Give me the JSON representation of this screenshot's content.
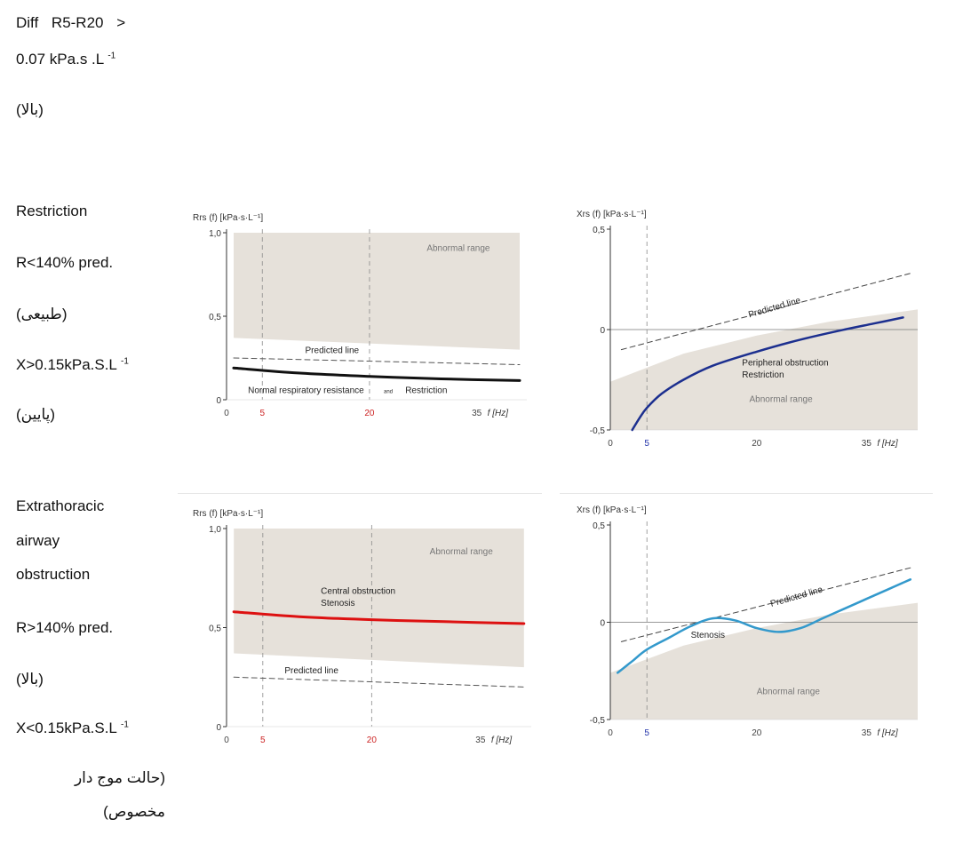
{
  "header": {
    "line1": "Diff R5-R20 >",
    "line2_main": "0.07 kPa.s .L",
    "line2_sup": "-1",
    "note": "(بالا)"
  },
  "rows": [
    {
      "labels": {
        "title": "Restriction",
        "r_rule": "R<140% pred.",
        "r_note": "(طبیعی)",
        "x_rule": "X>0.15kPa.S.L",
        "x_sup": "-1",
        "x_note": "(پایین)"
      }
    },
    {
      "labels": {
        "title_1": "Extrathoracic",
        "title_2": "airway",
        "title_3": "obstruction",
        "r_rule": "R>140% pred.",
        "r_note": "(بالا)",
        "x_rule": "X<0.15kPa.S.L",
        "x_sup": "-1",
        "x_note_1": "(حالت موج دار",
        "x_note_2": "مخصوص)"
      }
    }
  ],
  "chart_data": [
    {
      "id": "restriction-rrs",
      "type": "line",
      "ylabel": "Rrs (f) [kPa·s·L⁻¹]",
      "xlabel": "f [Hz]",
      "xlim": [
        0,
        42
      ],
      "ylim": [
        0,
        1.0
      ],
      "xticks": [
        {
          "v": 0,
          "t": "0",
          "c": "#444444"
        },
        {
          "v": 5,
          "t": "5",
          "c": "#cc2222"
        },
        {
          "v": 20,
          "t": "20",
          "c": "#cc2222"
        },
        {
          "v": 35,
          "t": "35",
          "c": "#444444"
        }
      ],
      "yticks": [
        {
          "v": 0,
          "t": "0"
        },
        {
          "v": 0.5,
          "t": "0,5"
        },
        {
          "v": 1.0,
          "t": "1,0"
        }
      ],
      "vlines": [
        5,
        20
      ],
      "region": {
        "label": "Abnormal range",
        "upper": [
          [
            1,
            1.0
          ],
          [
            41,
            1.0
          ]
        ],
        "lower": [
          [
            1,
            0.37
          ],
          [
            41,
            0.3
          ]
        ]
      },
      "series": [
        {
          "name": "Predicted line",
          "style": "dashed",
          "color": "#555555",
          "width": 1,
          "x": [
            1,
            41
          ],
          "y": [
            0.25,
            0.21
          ]
        },
        {
          "style": "solid",
          "color": "#111111",
          "width": 3,
          "x": [
            1,
            10,
            20,
            30,
            41
          ],
          "y": [
            0.19,
            0.16,
            0.14,
            0.125,
            0.115
          ]
        }
      ],
      "annotations": [
        {
          "text": "Abnormal range",
          "x": 28,
          "y": 0.89,
          "size": 10,
          "color": "#777777"
        },
        {
          "text": "Predicted line",
          "x": 11,
          "y": 0.28,
          "size": 10,
          "color": "#222222"
        },
        {
          "text": "Normal respiratory resistance",
          "x": 3,
          "y": 0.04,
          "size": 10,
          "color": "#222222"
        },
        {
          "text": "and",
          "x": 22,
          "y": 0.04,
          "size": 6,
          "color": "#222222"
        },
        {
          "text": "Restriction",
          "x": 25,
          "y": 0.04,
          "size": 10,
          "color": "#222222"
        }
      ]
    },
    {
      "id": "restriction-xrs",
      "type": "line",
      "ylabel": "Xrs (f) [kPa·s·L⁻¹]",
      "xlabel": "f [Hz]",
      "xlim": [
        0,
        42
      ],
      "ylim": [
        -0.5,
        0.5
      ],
      "xticks": [
        {
          "v": 0,
          "t": "0",
          "c": "#444444"
        },
        {
          "v": 5,
          "t": "5",
          "c": "#2233aa"
        },
        {
          "v": 20,
          "t": "20",
          "c": "#444444"
        },
        {
          "v": 35,
          "t": "35",
          "c": "#444444"
        }
      ],
      "yticks": [
        {
          "v": -0.5,
          "t": "-0,5"
        },
        {
          "v": 0,
          "t": "0"
        },
        {
          "v": 0.5,
          "t": "0,5"
        }
      ],
      "vlines": [
        5
      ],
      "hline": 0,
      "region": {
        "label": "Abnormal range",
        "upper": [
          [
            0,
            -0.26
          ],
          [
            10,
            -0.12
          ],
          [
            20,
            -0.03
          ],
          [
            30,
            0.04
          ],
          [
            42,
            0.1
          ]
        ],
        "lower": [
          [
            0,
            -0.5
          ],
          [
            42,
            -0.5
          ]
        ]
      },
      "series": [
        {
          "name": "Predicted line",
          "style": "dashed",
          "color": "#444444",
          "width": 1,
          "x": [
            1.5,
            41
          ],
          "y": [
            -0.1,
            0.28
          ]
        },
        {
          "style": "solid",
          "color": "#1c2f8f",
          "width": 2.5,
          "x": [
            3,
            4,
            5,
            7,
            10,
            14,
            20,
            26,
            32,
            36,
            40
          ],
          "y": [
            -0.5,
            -0.44,
            -0.39,
            -0.32,
            -0.25,
            -0.18,
            -0.11,
            -0.05,
            0.0,
            0.03,
            0.06
          ]
        }
      ],
      "annotations": [
        {
          "text": "Predicted line",
          "x": 19,
          "y": 0.06,
          "size": 10,
          "color": "#222222",
          "rot": -16
        },
        {
          "text": "Peripheral obstruction",
          "x": 18,
          "y": -0.18,
          "size": 10,
          "color": "#222222"
        },
        {
          "text": "Restriction",
          "x": 18,
          "y": -0.24,
          "size": 10,
          "color": "#222222"
        },
        {
          "text": "Abnormal range",
          "x": 19,
          "y": -0.36,
          "size": 10,
          "color": "#777777"
        }
      ]
    },
    {
      "id": "extrathoracic-rrs",
      "type": "line",
      "ylabel": "Rrs (f) [kPa·s·L⁻¹]",
      "xlabel": "f [Hz]",
      "xlim": [
        0,
        42
      ],
      "ylim": [
        0,
        1.0
      ],
      "xticks": [
        {
          "v": 0,
          "t": "0",
          "c": "#444444"
        },
        {
          "v": 5,
          "t": "5",
          "c": "#cc2222"
        },
        {
          "v": 20,
          "t": "20",
          "c": "#cc2222"
        },
        {
          "v": 35,
          "t": "35",
          "c": "#444444"
        }
      ],
      "yticks": [
        {
          "v": 0,
          "t": "0"
        },
        {
          "v": 0.5,
          "t": "0,5"
        },
        {
          "v": 1.0,
          "t": "1,0"
        }
      ],
      "vlines": [
        5,
        20
      ],
      "region": {
        "label": "Abnormal range",
        "upper": [
          [
            1,
            1.0
          ],
          [
            41,
            1.0
          ]
        ],
        "lower": [
          [
            1,
            0.37
          ],
          [
            41,
            0.3
          ]
        ]
      },
      "series": [
        {
          "name": "Predicted line",
          "style": "dashed",
          "color": "#555555",
          "width": 1,
          "x": [
            1,
            41
          ],
          "y": [
            0.25,
            0.2
          ]
        },
        {
          "style": "solid",
          "color": "#dd1111",
          "width": 3,
          "x": [
            1,
            10,
            20,
            30,
            41
          ],
          "y": [
            0.58,
            0.555,
            0.54,
            0.53,
            0.52
          ]
        }
      ],
      "annotations": [
        {
          "text": "Abnormal range",
          "x": 28,
          "y": 0.87,
          "size": 10,
          "color": "#777777"
        },
        {
          "text": "Central obstruction",
          "x": 13,
          "y": 0.67,
          "size": 10,
          "color": "#222222"
        },
        {
          "text": "Stenosis",
          "x": 13,
          "y": 0.61,
          "size": 10,
          "color": "#222222"
        },
        {
          "text": "Predicted line",
          "x": 8,
          "y": 0.27,
          "size": 10,
          "color": "#222222"
        }
      ]
    },
    {
      "id": "extrathoracic-xrs",
      "type": "line",
      "ylabel": "Xrs (f) [kPa·s·L⁻¹]",
      "xlabel": "f [Hz]",
      "xlim": [
        0,
        42
      ],
      "ylim": [
        -0.5,
        0.5
      ],
      "xticks": [
        {
          "v": 0,
          "t": "0",
          "c": "#444444"
        },
        {
          "v": 5,
          "t": "5",
          "c": "#2233aa"
        },
        {
          "v": 20,
          "t": "20",
          "c": "#444444"
        },
        {
          "v": 35,
          "t": "35",
          "c": "#444444"
        }
      ],
      "yticks": [
        {
          "v": -0.5,
          "t": "-0,5"
        },
        {
          "v": 0,
          "t": "0"
        },
        {
          "v": 0.5,
          "t": "0,5"
        }
      ],
      "vlines": [
        5
      ],
      "hline": 0,
      "region": {
        "label": "Abnormal range",
        "upper": [
          [
            0,
            -0.26
          ],
          [
            10,
            -0.12
          ],
          [
            20,
            -0.03
          ],
          [
            30,
            0.04
          ],
          [
            42,
            0.1
          ]
        ],
        "lower": [
          [
            0,
            -0.5
          ],
          [
            42,
            -0.5
          ]
        ]
      },
      "series": [
        {
          "name": "Predicted line",
          "style": "dashed",
          "color": "#444444",
          "width": 1,
          "x": [
            1.5,
            41
          ],
          "y": [
            -0.1,
            0.28
          ]
        },
        {
          "style": "solid",
          "color": "#3399cc",
          "width": 2.5,
          "x": [
            1,
            3,
            5,
            8,
            11,
            14,
            17,
            20,
            23,
            26,
            29,
            32,
            35,
            38,
            41
          ],
          "y": [
            -0.26,
            -0.2,
            -0.14,
            -0.08,
            -0.02,
            0.02,
            0.01,
            -0.03,
            -0.05,
            -0.03,
            0.02,
            0.07,
            0.12,
            0.17,
            0.22
          ]
        }
      ],
      "annotations": [
        {
          "text": "Predicted line",
          "x": 22,
          "y": 0.08,
          "size": 10,
          "color": "#222222",
          "rot": -16
        },
        {
          "text": "Stenosis",
          "x": 11,
          "y": -0.08,
          "size": 10,
          "color": "#222222"
        },
        {
          "text": "Abnormal range",
          "x": 20,
          "y": -0.37,
          "size": 10,
          "color": "#777777"
        }
      ]
    }
  ]
}
